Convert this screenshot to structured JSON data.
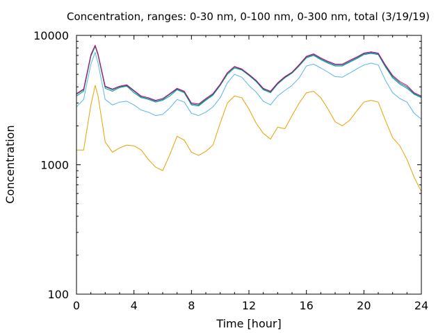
{
  "chart_data": {
    "type": "line",
    "title": "Concentration, ranges: 0-30 nm, 0-100 nm, 0-300 nm, total (3/19/19)",
    "xlabel": "Time [hour]",
    "ylabel": "Concentration",
    "x_scale": "linear",
    "y_scale": "log",
    "xlim": [
      0,
      24
    ],
    "ylim": [
      100,
      10000
    ],
    "x_ticks": [
      0,
      4,
      8,
      12,
      16,
      20,
      24
    ],
    "x_tick_labels": [
      "0",
      "4",
      "8",
      "12",
      "16",
      "20",
      "24"
    ],
    "y_ticks": [
      100,
      1000,
      10000
    ],
    "y_tick_labels": [
      "100",
      "1000",
      "10000"
    ],
    "grid": false,
    "legend": "none",
    "x": [
      0,
      0.5,
      1,
      1.3,
      1.5,
      2,
      2.5,
      3,
      3.5,
      4,
      4.5,
      5,
      5.5,
      6,
      6.5,
      7,
      7.5,
      8,
      8.5,
      9,
      9.5,
      10,
      10.5,
      11,
      11.5,
      12,
      12.5,
      13,
      13.5,
      14,
      14.5,
      15,
      15.5,
      16,
      16.5,
      17,
      17.5,
      18,
      18.5,
      19,
      19.5,
      20,
      20.5,
      21,
      21.5,
      22,
      22.5,
      23,
      23.5,
      24
    ],
    "series": [
      {
        "color": "#e8a000",
        "values": [
          1300,
          1300,
          2900,
          4100,
          3400,
          1500,
          1250,
          1350,
          1420,
          1400,
          1300,
          1100,
          960,
          900,
          1200,
          1660,
          1550,
          1250,
          1180,
          1270,
          1420,
          2100,
          3000,
          3400,
          3300,
          2700,
          2100,
          1750,
          1580,
          1950,
          1900,
          2400,
          3000,
          3600,
          3700,
          3300,
          2700,
          2150,
          2000,
          2200,
          2600,
          3050,
          3150,
          3050,
          2200,
          1620,
          1400,
          1100,
          800,
          620
        ]
      },
      {
        "color": "#56b4e9",
        "values": [
          2800,
          3200,
          6000,
          7400,
          6100,
          3200,
          2900,
          3050,
          3100,
          2900,
          2650,
          2550,
          2400,
          2450,
          2750,
          3200,
          3050,
          2500,
          2400,
          2550,
          2800,
          3300,
          4300,
          5000,
          4750,
          4100,
          3650,
          3100,
          2900,
          3400,
          3750,
          4100,
          4700,
          5800,
          6000,
          5600,
          5200,
          4800,
          4750,
          5100,
          5500,
          5900,
          6100,
          5900,
          4500,
          3600,
          3250,
          3050,
          2500,
          2250
        ]
      },
      {
        "color": "#009e73",
        "values": [
          3400,
          3700,
          6900,
          8200,
          7000,
          3900,
          3700,
          3950,
          4050,
          3600,
          3300,
          3200,
          3050,
          3150,
          3400,
          3800,
          3600,
          2900,
          2850,
          3150,
          3450,
          4100,
          5000,
          5600,
          5400,
          4900,
          4400,
          3800,
          3600,
          4200,
          4700,
          5100,
          5800,
          6700,
          7000,
          6500,
          6100,
          5800,
          5800,
          6200,
          6600,
          7100,
          7250,
          7100,
          5700,
          4700,
          4200,
          3900,
          3500,
          3300
        ]
      },
      {
        "color": "#0072b2",
        "values": [
          3500,
          3800,
          7000,
          8300,
          7100,
          4000,
          3800,
          4000,
          4100,
          3700,
          3350,
          3250,
          3100,
          3200,
          3500,
          3850,
          3650,
          2950,
          2900,
          3200,
          3500,
          4150,
          5100,
          5700,
          5450,
          4950,
          4450,
          3850,
          3650,
          4250,
          4750,
          5150,
          5900,
          6800,
          7100,
          6600,
          6200,
          5900,
          5900,
          6300,
          6700,
          7200,
          7350,
          7200,
          5800,
          4800,
          4300,
          4000,
          3550,
          3350
        ]
      },
      {
        "color": "#cc0066",
        "values": [
          3550,
          3850,
          7100,
          8400,
          7200,
          4050,
          3850,
          4050,
          4150,
          3750,
          3400,
          3300,
          3150,
          3250,
          3550,
          3900,
          3700,
          3000,
          2950,
          3250,
          3550,
          4200,
          5150,
          5750,
          5500,
          5000,
          4500,
          3900,
          3700,
          4300,
          4800,
          5200,
          5950,
          6900,
          7200,
          6700,
          6300,
          6000,
          6000,
          6400,
          6800,
          7300,
          7450,
          7300,
          5900,
          4900,
          4400,
          4100,
          3600,
          3400
        ]
      }
    ]
  }
}
